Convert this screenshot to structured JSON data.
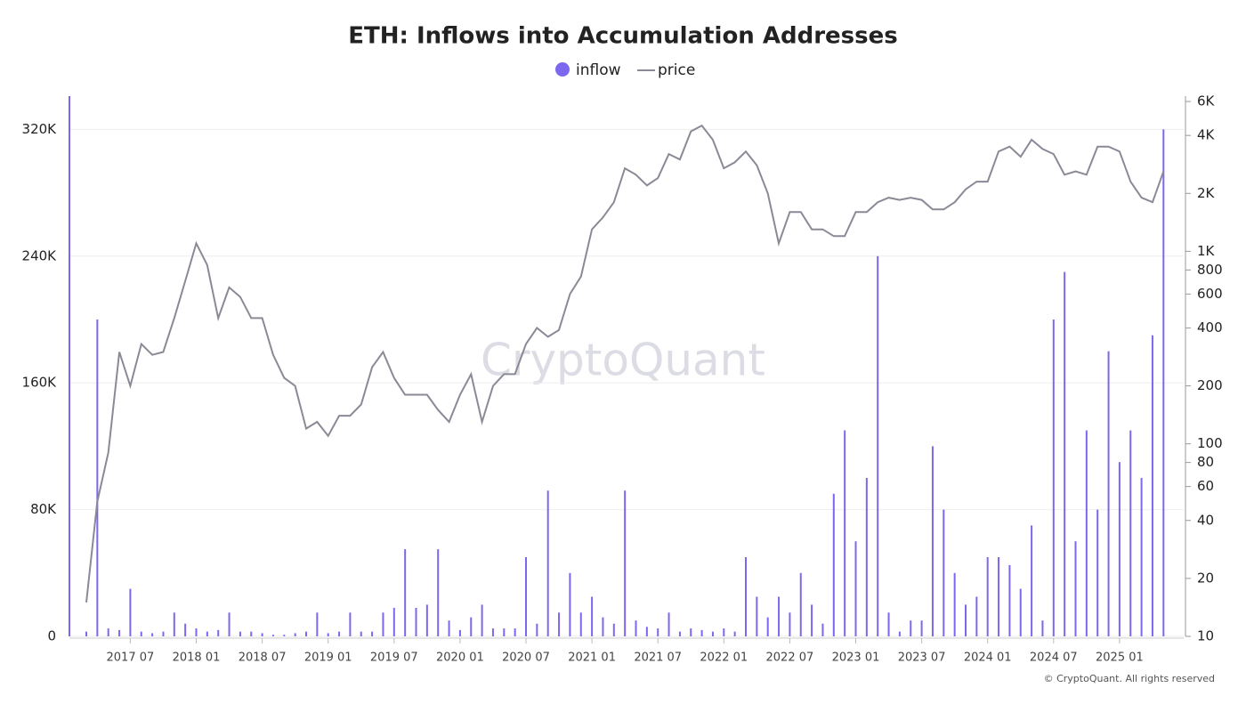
{
  "chart_data": {
    "type": "combo",
    "title": "ETH: Inflows into Accumulation Addresses",
    "watermark": "CryptoQuant",
    "credit": "© CryptoQuant. All rights reserved",
    "legend": "top",
    "grid": true,
    "x": [
      "2017-03",
      "2017-04",
      "2017-05",
      "2017-06",
      "2017-07",
      "2017-08",
      "2017-09",
      "2017-10",
      "2017-11",
      "2017-12",
      "2018-01",
      "2018-02",
      "2018-03",
      "2018-04",
      "2018-05",
      "2018-06",
      "2018-07",
      "2018-08",
      "2018-09",
      "2018-10",
      "2018-11",
      "2018-12",
      "2019-01",
      "2019-02",
      "2019-03",
      "2019-04",
      "2019-05",
      "2019-06",
      "2019-07",
      "2019-08",
      "2019-09",
      "2019-10",
      "2019-11",
      "2019-12",
      "2020-01",
      "2020-02",
      "2020-03",
      "2020-04",
      "2020-05",
      "2020-06",
      "2020-07",
      "2020-08",
      "2020-09",
      "2020-10",
      "2020-11",
      "2020-12",
      "2021-01",
      "2021-02",
      "2021-03",
      "2021-04",
      "2021-05",
      "2021-06",
      "2021-07",
      "2021-08",
      "2021-09",
      "2021-10",
      "2021-11",
      "2021-12",
      "2022-01",
      "2022-02",
      "2022-03",
      "2022-04",
      "2022-05",
      "2022-06",
      "2022-07",
      "2022-08",
      "2022-09",
      "2022-10",
      "2022-11",
      "2022-12",
      "2023-01",
      "2023-02",
      "2023-03",
      "2023-04",
      "2023-05",
      "2023-06",
      "2023-07",
      "2023-08",
      "2023-09",
      "2023-10",
      "2023-11",
      "2023-12",
      "2024-01",
      "2024-02",
      "2024-03",
      "2024-04",
      "2024-05",
      "2024-06",
      "2024-07",
      "2024-08",
      "2024-09",
      "2024-10",
      "2024-11",
      "2024-12",
      "2025-01",
      "2025-02",
      "2025-03",
      "2025-04",
      "2025-05"
    ],
    "xticks": [
      {
        "value": "2017-07",
        "label": "2017 07"
      },
      {
        "value": "2018-01",
        "label": "2018 01"
      },
      {
        "value": "2018-07",
        "label": "2018 07"
      },
      {
        "value": "2019-01",
        "label": "2019 01"
      },
      {
        "value": "2019-07",
        "label": "2019 07"
      },
      {
        "value": "2020-01",
        "label": "2020 01"
      },
      {
        "value": "2020-07",
        "label": "2020 07"
      },
      {
        "value": "2021-01",
        "label": "2021 01"
      },
      {
        "value": "2021-07",
        "label": "2021 07"
      },
      {
        "value": "2022-01",
        "label": "2022 01"
      },
      {
        "value": "2022-07",
        "label": "2022 07"
      },
      {
        "value": "2023-01",
        "label": "2023 01"
      },
      {
        "value": "2023-07",
        "label": "2023 07"
      },
      {
        "value": "2024-01",
        "label": "2024 01"
      },
      {
        "value": "2024-07",
        "label": "2024 07"
      },
      {
        "value": "2025-01",
        "label": "2025 01"
      }
    ],
    "ylim": [
      0,
      341000
    ],
    "yticks": [
      0,
      {
        "value": 80000,
        "label": "80K"
      },
      {
        "value": 160000,
        "label": "160K"
      },
      {
        "value": 240000,
        "label": "240K"
      },
      {
        "value": 320000,
        "label": "320K"
      }
    ],
    "y2lim": [
      10,
      6400
    ],
    "y2scale": "log",
    "y2ticks": [
      10,
      20,
      40,
      60,
      80,
      100,
      200,
      400,
      600,
      800,
      {
        "value": 1000,
        "label": "1K"
      },
      {
        "value": 2000,
        "label": "2K"
      },
      {
        "value": 4000,
        "label": "4K"
      },
      {
        "value": 6000,
        "label": "6K"
      }
    ],
    "series": [
      {
        "name": "inflow",
        "type": "bar",
        "color": "#7b68ee",
        "values": [
          3000,
          200000,
          5000,
          4000,
          30000,
          3000,
          2000,
          3000,
          15000,
          8000,
          5000,
          3000,
          4000,
          15000,
          3000,
          3000,
          2000,
          1000,
          1000,
          2000,
          3000,
          15000,
          2000,
          3000,
          15000,
          3000,
          3000,
          15000,
          18000,
          55000,
          18000,
          20000,
          55000,
          10000,
          4000,
          12000,
          20000,
          5000,
          5000,
          5000,
          50000,
          8000,
          92000,
          15000,
          40000,
          15000,
          25000,
          12000,
          8000,
          92000,
          10000,
          6000,
          5000,
          15000,
          3000,
          5000,
          4000,
          3000,
          5000,
          3000,
          50000,
          25000,
          12000,
          25000,
          15000,
          40000,
          20000,
          8000,
          90000,
          130000,
          60000,
          100000,
          240000,
          15000,
          3000,
          10000,
          10000,
          120000,
          80000,
          40000,
          20000,
          25000,
          50000,
          50000,
          45000,
          30000,
          70000,
          10000,
          200000,
          230000,
          60000,
          130000,
          80000,
          180000,
          110000,
          130000,
          100000,
          190000,
          320000
        ]
      },
      {
        "name": "price",
        "type": "line",
        "axis": "y2",
        "color": "#8a8a96",
        "values": [
          15,
          50,
          90,
          300,
          200,
          330,
          290,
          300,
          450,
          700,
          1100,
          850,
          450,
          650,
          580,
          450,
          450,
          290,
          220,
          200,
          120,
          130,
          110,
          140,
          140,
          160,
          250,
          300,
          220,
          180,
          180,
          180,
          150,
          130,
          180,
          230,
          130,
          200,
          230,
          230,
          330,
          400,
          360,
          390,
          600,
          740,
          1300,
          1500,
          1800,
          2700,
          2500,
          2200,
          2400,
          3200,
          3000,
          4200,
          4500,
          3800,
          2700,
          2900,
          3300,
          2800,
          2000,
          1100,
          1600,
          1600,
          1300,
          1300,
          1200,
          1200,
          1600,
          1600,
          1800,
          1900,
          1850,
          1900,
          1850,
          1650,
          1650,
          1800,
          2100,
          2300,
          2300,
          3300,
          3500,
          3100,
          3800,
          3400,
          3200,
          2500,
          2600,
          2500,
          3500,
          3500,
          3300,
          2300,
          1900,
          1800,
          2600
        ]
      }
    ]
  }
}
